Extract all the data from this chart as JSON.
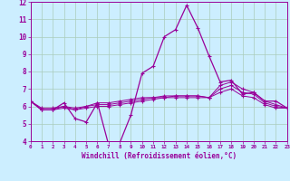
{
  "xlabel": "Windchill (Refroidissement éolien,°C)",
  "background_color": "#cceeff",
  "grid_color": "#aaccbb",
  "line_color": "#990099",
  "xmin": 0,
  "xmax": 23,
  "ymin": 4,
  "ymax": 12,
  "hours": [
    0,
    1,
    2,
    3,
    4,
    5,
    6,
    7,
    8,
    9,
    10,
    11,
    12,
    13,
    14,
    15,
    16,
    17,
    18,
    19,
    20,
    21,
    22,
    23
  ],
  "line1": [
    6.3,
    5.8,
    5.8,
    6.2,
    5.3,
    5.1,
    6.2,
    3.8,
    3.9,
    5.5,
    7.9,
    8.3,
    10.0,
    10.4,
    11.8,
    10.5,
    8.9,
    7.4,
    7.5,
    6.7,
    6.8,
    6.3,
    6.3,
    5.9
  ],
  "line2": [
    6.3,
    5.8,
    5.8,
    6.0,
    5.8,
    6.0,
    6.2,
    6.2,
    6.3,
    6.4,
    6.5,
    6.5,
    6.6,
    6.6,
    6.6,
    6.6,
    6.5,
    7.2,
    7.4,
    7.0,
    6.8,
    6.3,
    6.1,
    5.9
  ],
  "line3": [
    6.3,
    5.9,
    5.9,
    6.0,
    5.9,
    6.0,
    6.1,
    6.1,
    6.2,
    6.3,
    6.4,
    6.5,
    6.5,
    6.6,
    6.6,
    6.6,
    6.5,
    7.0,
    7.2,
    6.8,
    6.7,
    6.2,
    6.0,
    5.9
  ],
  "line4": [
    6.3,
    5.8,
    5.8,
    5.9,
    5.8,
    5.9,
    6.0,
    6.0,
    6.1,
    6.2,
    6.3,
    6.4,
    6.5,
    6.5,
    6.5,
    6.5,
    6.5,
    6.8,
    7.0,
    6.6,
    6.5,
    6.1,
    5.9,
    5.9
  ]
}
